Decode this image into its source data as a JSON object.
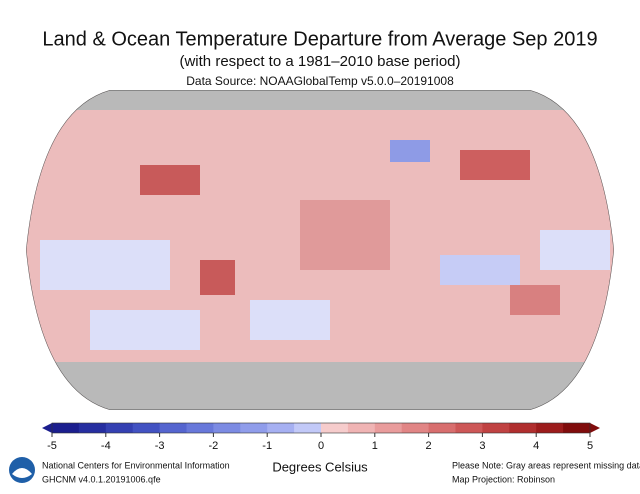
{
  "header": {
    "title": "Land & Ocean Temperature Departure from Average Sep 2019",
    "subtitle": "(with respect to a 1981–2010 base period)",
    "source": "Data Source: NOAAGlobalTemp v5.0.0–20191008"
  },
  "colorbar": {
    "lim": [
      -5,
      5
    ],
    "ticks": [
      -5,
      -4,
      -3,
      -2,
      -1,
      0,
      1,
      2,
      3,
      4,
      5
    ],
    "colors": [
      "#1b1e8e",
      "#262ea0",
      "#3440b2",
      "#4252c2",
      "#5565cf",
      "#6878da",
      "#7c8be3",
      "#909deb",
      "#a6b0f2",
      "#c2c9f8",
      "#f6cccc",
      "#f0b4b4",
      "#e99c9c",
      "#e18585",
      "#d86e6e",
      "#cd5757",
      "#c04242",
      "#b02e2e",
      "#9c1c1c",
      "#800c0c"
    ],
    "label": "Degrees Celsius"
  },
  "footer": {
    "org": "National Centers for Environmental Information",
    "file": "GHCNM v4.0.1.20191006.qfe",
    "note": "Please Note: Gray areas represent missing data",
    "projection": "Map Projection: Robinson"
  }
}
